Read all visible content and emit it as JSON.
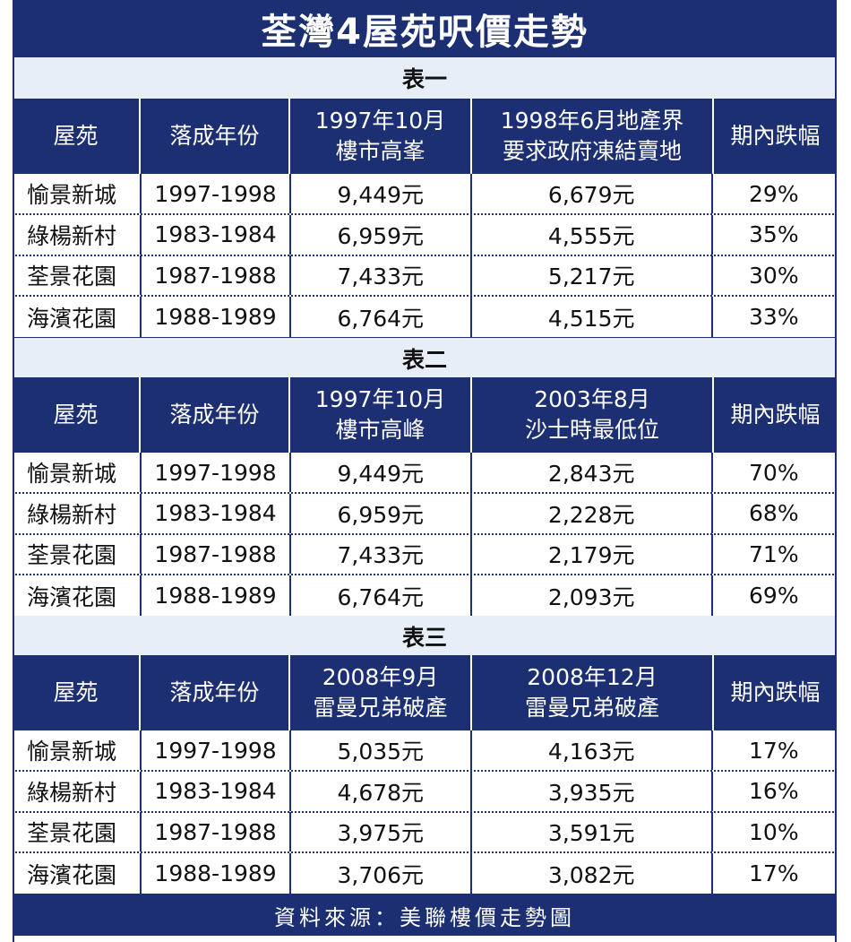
{
  "title": "荃灣4屋苑呎價走勢",
  "source": "資料來源：美聯樓價走勢圖",
  "columns": {
    "estate": "屋苑",
    "completion": "落成年份",
    "change": "期內跌幅"
  },
  "tables": [
    {
      "name": "表一",
      "col3": [
        "1997年10月",
        "樓市高峯"
      ],
      "col4": [
        "1998年6月地產界",
        "要求政府凍結賣地"
      ],
      "rows": [
        {
          "estate": "愉景新城",
          "years": "1997-1998",
          "v1": "9,449元",
          "v2": "6,679元",
          "pct": "29%"
        },
        {
          "estate": "綠楊新村",
          "years": "1983-1984",
          "v1": "6,959元",
          "v2": "4,555元",
          "pct": "35%"
        },
        {
          "estate": "荃景花園",
          "years": "1987-1988",
          "v1": "7,433元",
          "v2": "5,217元",
          "pct": "30%"
        },
        {
          "estate": "海濱花園",
          "years": "1988-1989",
          "v1": "6,764元",
          "v2": "4,515元",
          "pct": "33%"
        }
      ]
    },
    {
      "name": "表二",
      "col3": [
        "1997年10月",
        "樓市高峰"
      ],
      "col4": [
        "2003年8月",
        "沙士時最低位"
      ],
      "rows": [
        {
          "estate": "愉景新城",
          "years": "1997-1998",
          "v1": "9,449元",
          "v2": "2,843元",
          "pct": "70%"
        },
        {
          "estate": "綠楊新村",
          "years": "1983-1984",
          "v1": "6,959元",
          "v2": "2,228元",
          "pct": "68%"
        },
        {
          "estate": "荃景花園",
          "years": "1987-1988",
          "v1": "7,433元",
          "v2": "2,179元",
          "pct": "71%"
        },
        {
          "estate": "海濱花園",
          "years": "1988-1989",
          "v1": "6,764元",
          "v2": "2,093元",
          "pct": "69%"
        }
      ]
    },
    {
      "name": "表三",
      "col3": [
        "2008年9月",
        "雷曼兄弟破產"
      ],
      "col4": [
        "2008年12月",
        "雷曼兄弟破產"
      ],
      "rows": [
        {
          "estate": "愉景新城",
          "years": "1997-1998",
          "v1": "5,035元",
          "v2": "4,163元",
          "pct": "17%"
        },
        {
          "estate": "綠楊新村",
          "years": "1983-1984",
          "v1": "4,678元",
          "v2": "3,935元",
          "pct": "16%"
        },
        {
          "estate": "荃景花園",
          "years": "1987-1988",
          "v1": "3,975元",
          "v2": "3,591元",
          "pct": "10%"
        },
        {
          "estate": "海濱花園",
          "years": "1988-1989",
          "v1": "3,706元",
          "v2": "3,082元",
          "pct": "17%"
        }
      ]
    }
  ]
}
